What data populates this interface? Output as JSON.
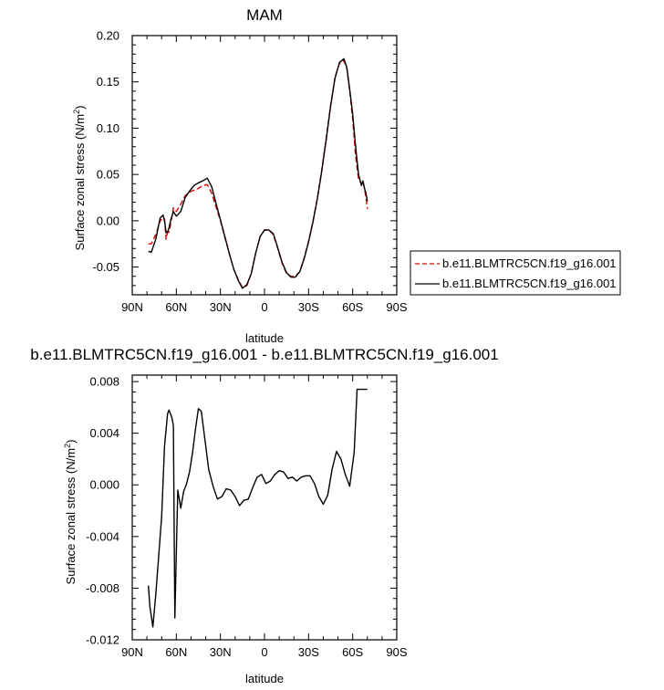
{
  "chart_data": [
    {
      "type": "line",
      "title": "MAM",
      "xlabel": "latitude",
      "ylabel_main": "Surface zonal stress (N/m",
      "ylabel_sup": "2",
      "ylabel_close": ")",
      "xlim": [
        90,
        -90
      ],
      "ylim": [
        -0.08,
        0.2
      ],
      "x_ticks": [
        90,
        60,
        30,
        0,
        -30,
        -60,
        -90
      ],
      "x_tick_labels": [
        "90N",
        "60N",
        "30N",
        "0",
        "30S",
        "60S",
        "90S"
      ],
      "y_ticks": [
        -0.05,
        0,
        0.05,
        0.1,
        0.15,
        0.2
      ],
      "y_tick_labels": [
        "-0.05",
        "0.00",
        "0.05",
        "0.10",
        "0.15",
        "0.20"
      ],
      "legend": {
        "placement": "right",
        "entries": [
          {
            "label": "b.e11.BLMTRC5CN.f19_g16.001",
            "color": "#dd0000",
            "style": "dashed"
          },
          {
            "label": "b.e11.BLMTRC5CN.f19_g16.001",
            "color": "#000000",
            "style": "solid"
          }
        ]
      },
      "series": [
        {
          "color": "#dd0000",
          "style": "dashed",
          "x": [
            79,
            77,
            74,
            71,
            69,
            68,
            67,
            66,
            65,
            64,
            62,
            60,
            57,
            54,
            51,
            48,
            45,
            42,
            39,
            36,
            33,
            30,
            27,
            24,
            21,
            18,
            15,
            12,
            9,
            6,
            3,
            0,
            -3,
            -6,
            -9,
            -12,
            -15,
            -18,
            -21,
            -24,
            -27,
            -30,
            -33,
            -36,
            -39,
            -42,
            -45,
            -48,
            -51,
            -54,
            -56,
            -58,
            -60,
            -62,
            -64,
            -66,
            -67,
            -68,
            -69,
            -70
          ],
          "y": [
            -0.025,
            -0.025,
            -0.015,
            0.0,
            0.003,
            0.002,
            -0.02,
            -0.013,
            -0.012,
            -0.005,
            0.014,
            0.01,
            0.018,
            0.027,
            0.031,
            0.033,
            0.035,
            0.038,
            0.039,
            0.03,
            0.015,
            0.0,
            -0.018,
            -0.035,
            -0.052,
            -0.063,
            -0.072,
            -0.07,
            -0.057,
            -0.035,
            -0.017,
            -0.01,
            -0.01,
            -0.015,
            -0.03,
            -0.046,
            -0.057,
            -0.06,
            -0.06,
            -0.055,
            -0.04,
            -0.022,
            0.0,
            0.025,
            0.055,
            0.09,
            0.125,
            0.155,
            0.17,
            0.173,
            0.165,
            0.14,
            0.11,
            0.07,
            0.045,
            0.04,
            0.043,
            0.035,
            0.025,
            0.013
          ]
        },
        {
          "color": "#000000",
          "style": "solid",
          "x": [
            79,
            77,
            74,
            71,
            69,
            68,
            67,
            66,
            65,
            64,
            62,
            60,
            57,
            54,
            51,
            48,
            45,
            42,
            39,
            36,
            33,
            30,
            27,
            24,
            21,
            18,
            15,
            12,
            9,
            6,
            3,
            0,
            -3,
            -6,
            -9,
            -12,
            -15,
            -18,
            -21,
            -24,
            -27,
            -30,
            -33,
            -36,
            -39,
            -42,
            -45,
            -48,
            -51,
            -54,
            -56,
            -58,
            -60,
            -62,
            -64,
            -66,
            -67,
            -68,
            -69,
            -70
          ],
          "y": [
            -0.033,
            -0.034,
            -0.02,
            0.003,
            0.006,
            0.0,
            -0.013,
            -0.012,
            -0.008,
            0.0,
            0.01,
            0.005,
            0.01,
            0.025,
            0.032,
            0.038,
            0.041,
            0.043,
            0.046,
            0.037,
            0.019,
            0.001,
            -0.017,
            -0.035,
            -0.052,
            -0.064,
            -0.073,
            -0.069,
            -0.057,
            -0.035,
            -0.017,
            -0.01,
            -0.01,
            -0.014,
            -0.029,
            -0.045,
            -0.056,
            -0.061,
            -0.061,
            -0.055,
            -0.041,
            -0.023,
            -0.001,
            0.024,
            0.054,
            0.088,
            0.124,
            0.154,
            0.171,
            0.175,
            0.166,
            0.142,
            0.115,
            0.08,
            0.05,
            0.038,
            0.043,
            0.035,
            0.03,
            0.021
          ]
        }
      ]
    },
    {
      "type": "line",
      "title": "b.e11.BLMTRC5CN.f19_g16.001 - b.e11.BLMTRC5CN.f19_g16.001",
      "xlabel": "latitude",
      "ylabel_main": "Surface zonal stress (N/m",
      "ylabel_sup": "2",
      "ylabel_close": ")",
      "xlim": [
        90,
        -90
      ],
      "ylim": [
        -0.012,
        0.0085
      ],
      "x_ticks": [
        90,
        60,
        30,
        0,
        -30,
        -60,
        -90
      ],
      "x_tick_labels": [
        "90N",
        "60N",
        "30N",
        "0",
        "30S",
        "60S",
        "90S"
      ],
      "y_ticks": [
        -0.012,
        -0.008,
        -0.004,
        0,
        0.004,
        0.008
      ],
      "y_tick_labels": [
        "-0.012",
        "-0.008",
        "-0.004",
        "0.000",
        "0.004",
        "0.008"
      ],
      "series": [
        {
          "color": "#000000",
          "style": "solid",
          "x": [
            79,
            78,
            76,
            74,
            72,
            70,
            68,
            66,
            65,
            64,
            63,
            62,
            61,
            59,
            57,
            55,
            53,
            51,
            49,
            47,
            45,
            43,
            40,
            38,
            35,
            32,
            29,
            26,
            23,
            20,
            17,
            14,
            11,
            8,
            5,
            2,
            -1,
            -4,
            -7,
            -10,
            -13,
            -16,
            -19,
            -22,
            -25,
            -28,
            -31,
            -34,
            -37,
            -40,
            -43,
            -46,
            -49,
            -52,
            -55,
            -58,
            -61,
            -63,
            -65,
            -66,
            -67,
            -68,
            -69,
            -70
          ],
          "y": [
            -0.0078,
            -0.0094,
            -0.011,
            -0.0085,
            -0.0055,
            -0.0025,
            0.003,
            0.0055,
            0.0058,
            0.0055,
            0.0052,
            0.0046,
            -0.0103,
            -0.0004,
            -0.0018,
            -0.0005,
            0.0001,
            0.001,
            0.0025,
            0.0043,
            0.0059,
            0.0057,
            0.003,
            0.0012,
            -0.0001,
            -0.0011,
            -0.0009,
            -0.0003,
            -0.0004,
            -0.0009,
            -0.0016,
            -0.0012,
            -0.0011,
            -0.0002,
            0.0006,
            0.0008,
            0.0001,
            0.0003,
            0.0008,
            0.0011,
            0.001,
            0.0005,
            0.0006,
            0.0003,
            0.0006,
            0.0007,
            0.0007,
            0.0001,
            -0.0009,
            -0.0015,
            -0.0008,
            0.0012,
            0.0026,
            0.002,
            0.0008,
            -0.0001,
            0.0025,
            0.0074,
            0.0074,
            0.0074,
            0.0074,
            0.0074,
            0.0074,
            0.0074
          ]
        }
      ]
    }
  ]
}
